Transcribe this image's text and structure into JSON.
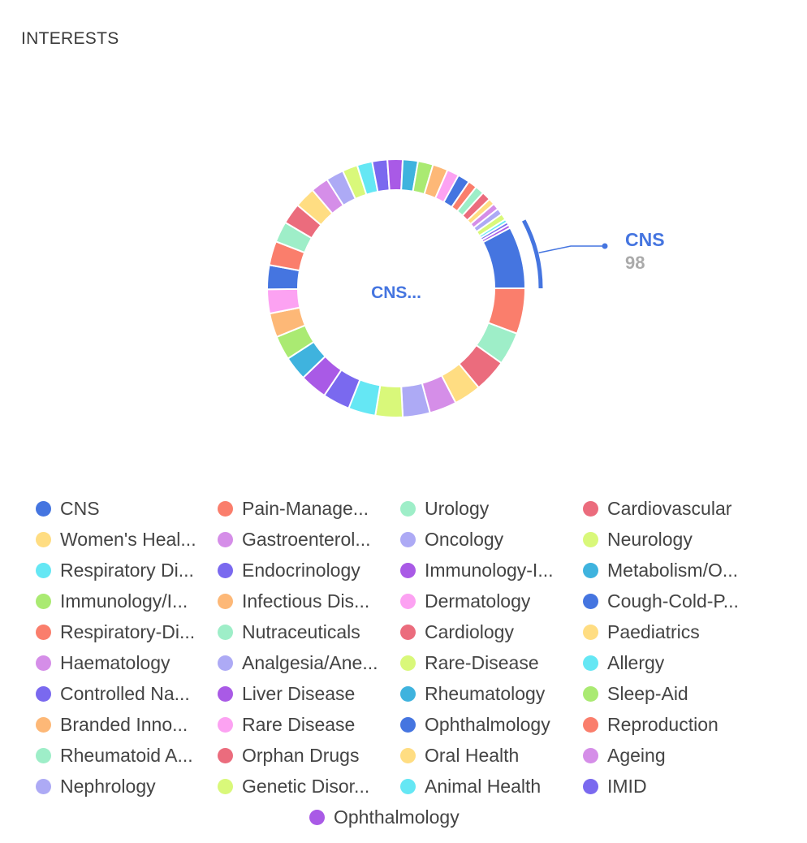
{
  "header": {
    "title": "INTERESTS"
  },
  "chart_data": {
    "type": "pie",
    "variant": "donut",
    "center_label": "CNS...",
    "highlight": {
      "label": "CNS",
      "value": "98"
    },
    "slices": [
      {
        "label": "CNS",
        "legend_label": "CNS",
        "value": 98,
        "color": "#4575e0"
      },
      {
        "label": "Pain-Management",
        "legend_label": "Pain-Manage...",
        "value": 72,
        "color": "#fa7e6c"
      },
      {
        "label": "Urology",
        "legend_label": "Urology",
        "value": 52,
        "color": "#9eeec8"
      },
      {
        "label": "Cardiovascular",
        "legend_label": "Cardiovascular",
        "value": 52,
        "color": "#eb6c7d"
      },
      {
        "label": "Women's Health",
        "legend_label": "Women's Heal...",
        "value": 43,
        "color": "#ffdd82"
      },
      {
        "label": "Gastroenterology",
        "legend_label": "Gastroenterol...",
        "value": 43,
        "color": "#d58ee8"
      },
      {
        "label": "Oncology",
        "legend_label": "Oncology",
        "value": 43,
        "color": "#adaaf5"
      },
      {
        "label": "Neurology",
        "legend_label": "Neurology",
        "value": 43,
        "color": "#d9f87a"
      },
      {
        "label": "Respiratory Diseases",
        "legend_label": "Respiratory Di...",
        "value": 43,
        "color": "#65e7f4"
      },
      {
        "label": "Endocrinology",
        "legend_label": "Endocrinology",
        "value": 43,
        "color": "#7a69ef"
      },
      {
        "label": "Immunology-Inflammation",
        "legend_label": "Immunology-I...",
        "value": 43,
        "color": "#a95ae6"
      },
      {
        "label": "Metabolism/Obesity",
        "legend_label": "Metabolism/O...",
        "value": 38,
        "color": "#3fb3de"
      },
      {
        "label": "Immunology/Inflammation",
        "legend_label": "Immunology/I...",
        "value": 38,
        "color": "#aaea72"
      },
      {
        "label": "Infectious Diseases",
        "legend_label": "Infectious Dis...",
        "value": 38,
        "color": "#fdb877"
      },
      {
        "label": "Dermatology",
        "legend_label": "Dermatology",
        "value": 38,
        "color": "#fca2f2"
      },
      {
        "label": "Cough-Cold-Pain",
        "legend_label": "Cough-Cold-P...",
        "value": 38,
        "color": "#4575e0"
      },
      {
        "label": "Respiratory-Diseases",
        "legend_label": "Respiratory-Di...",
        "value": 38,
        "color": "#fa7e6c"
      },
      {
        "label": "Nutraceuticals",
        "legend_label": "Nutraceuticals",
        "value": 33,
        "color": "#9eeec8"
      },
      {
        "label": "Cardiology",
        "legend_label": "Cardiology",
        "value": 33,
        "color": "#eb6c7d"
      },
      {
        "label": "Paediatrics",
        "legend_label": "Paediatrics",
        "value": 33,
        "color": "#ffdd82"
      },
      {
        "label": "Haematology",
        "legend_label": "Haematology",
        "value": 28,
        "color": "#d58ee8"
      },
      {
        "label": "Analgesia/Anesthesia",
        "legend_label": "Analgesia/Ane...",
        "value": 28,
        "color": "#adaaf5"
      },
      {
        "label": "Rare-Disease",
        "legend_label": "Rare-Disease",
        "value": 24,
        "color": "#d9f87a"
      },
      {
        "label": "Allergy",
        "legend_label": "Allergy",
        "value": 24,
        "color": "#65e7f4"
      },
      {
        "label": "Controlled Narcotics",
        "legend_label": "Controlled Na...",
        "value": 24,
        "color": "#7a69ef"
      },
      {
        "label": "Liver Disease",
        "legend_label": "Liver Disease",
        "value": 24,
        "color": "#a95ae6"
      },
      {
        "label": "Rheumatology",
        "legend_label": "Rheumatology",
        "value": 24,
        "color": "#3fb3de"
      },
      {
        "label": "Sleep-Aid",
        "legend_label": "Sleep-Aid",
        "value": 24,
        "color": "#aaea72"
      },
      {
        "label": "Branded Innovation",
        "legend_label": "Branded Inno...",
        "value": 24,
        "color": "#fdb877"
      },
      {
        "label": "Rare Disease",
        "legend_label": "Rare Disease",
        "value": 19,
        "color": "#fca2f2"
      },
      {
        "label": "Ophthalmology",
        "legend_label": "Ophthalmology",
        "value": 19,
        "color": "#4575e0"
      },
      {
        "label": "Reproduction",
        "legend_label": "Reproduction",
        "value": 14,
        "color": "#fa7e6c"
      },
      {
        "label": "Rheumatoid Arthritis",
        "legend_label": "Rheumatoid A...",
        "value": 14,
        "color": "#9eeec8"
      },
      {
        "label": "Orphan Drugs",
        "legend_label": "Orphan Drugs",
        "value": 14,
        "color": "#eb6c7d"
      },
      {
        "label": "Oral Health",
        "legend_label": "Oral Health",
        "value": 10,
        "color": "#ffdd82"
      },
      {
        "label": "Ageing",
        "legend_label": "Ageing",
        "value": 10,
        "color": "#d58ee8"
      },
      {
        "label": "Nephrology",
        "legend_label": "Nephrology",
        "value": 10,
        "color": "#adaaf5"
      },
      {
        "label": "Genetic Disorders",
        "legend_label": "Genetic Disor...",
        "value": 10,
        "color": "#d9f87a"
      },
      {
        "label": "Animal Health",
        "legend_label": "Animal Health",
        "value": 5,
        "color": "#65e7f4"
      },
      {
        "label": "IMID",
        "legend_label": "IMID",
        "value": 5,
        "color": "#7a69ef"
      },
      {
        "label": "Ophthalmology",
        "legend_label": "Ophthalmology",
        "value": 5,
        "color": "#a95ae6"
      }
    ],
    "legend": {
      "placement": "bottom",
      "columns": 4
    }
  }
}
